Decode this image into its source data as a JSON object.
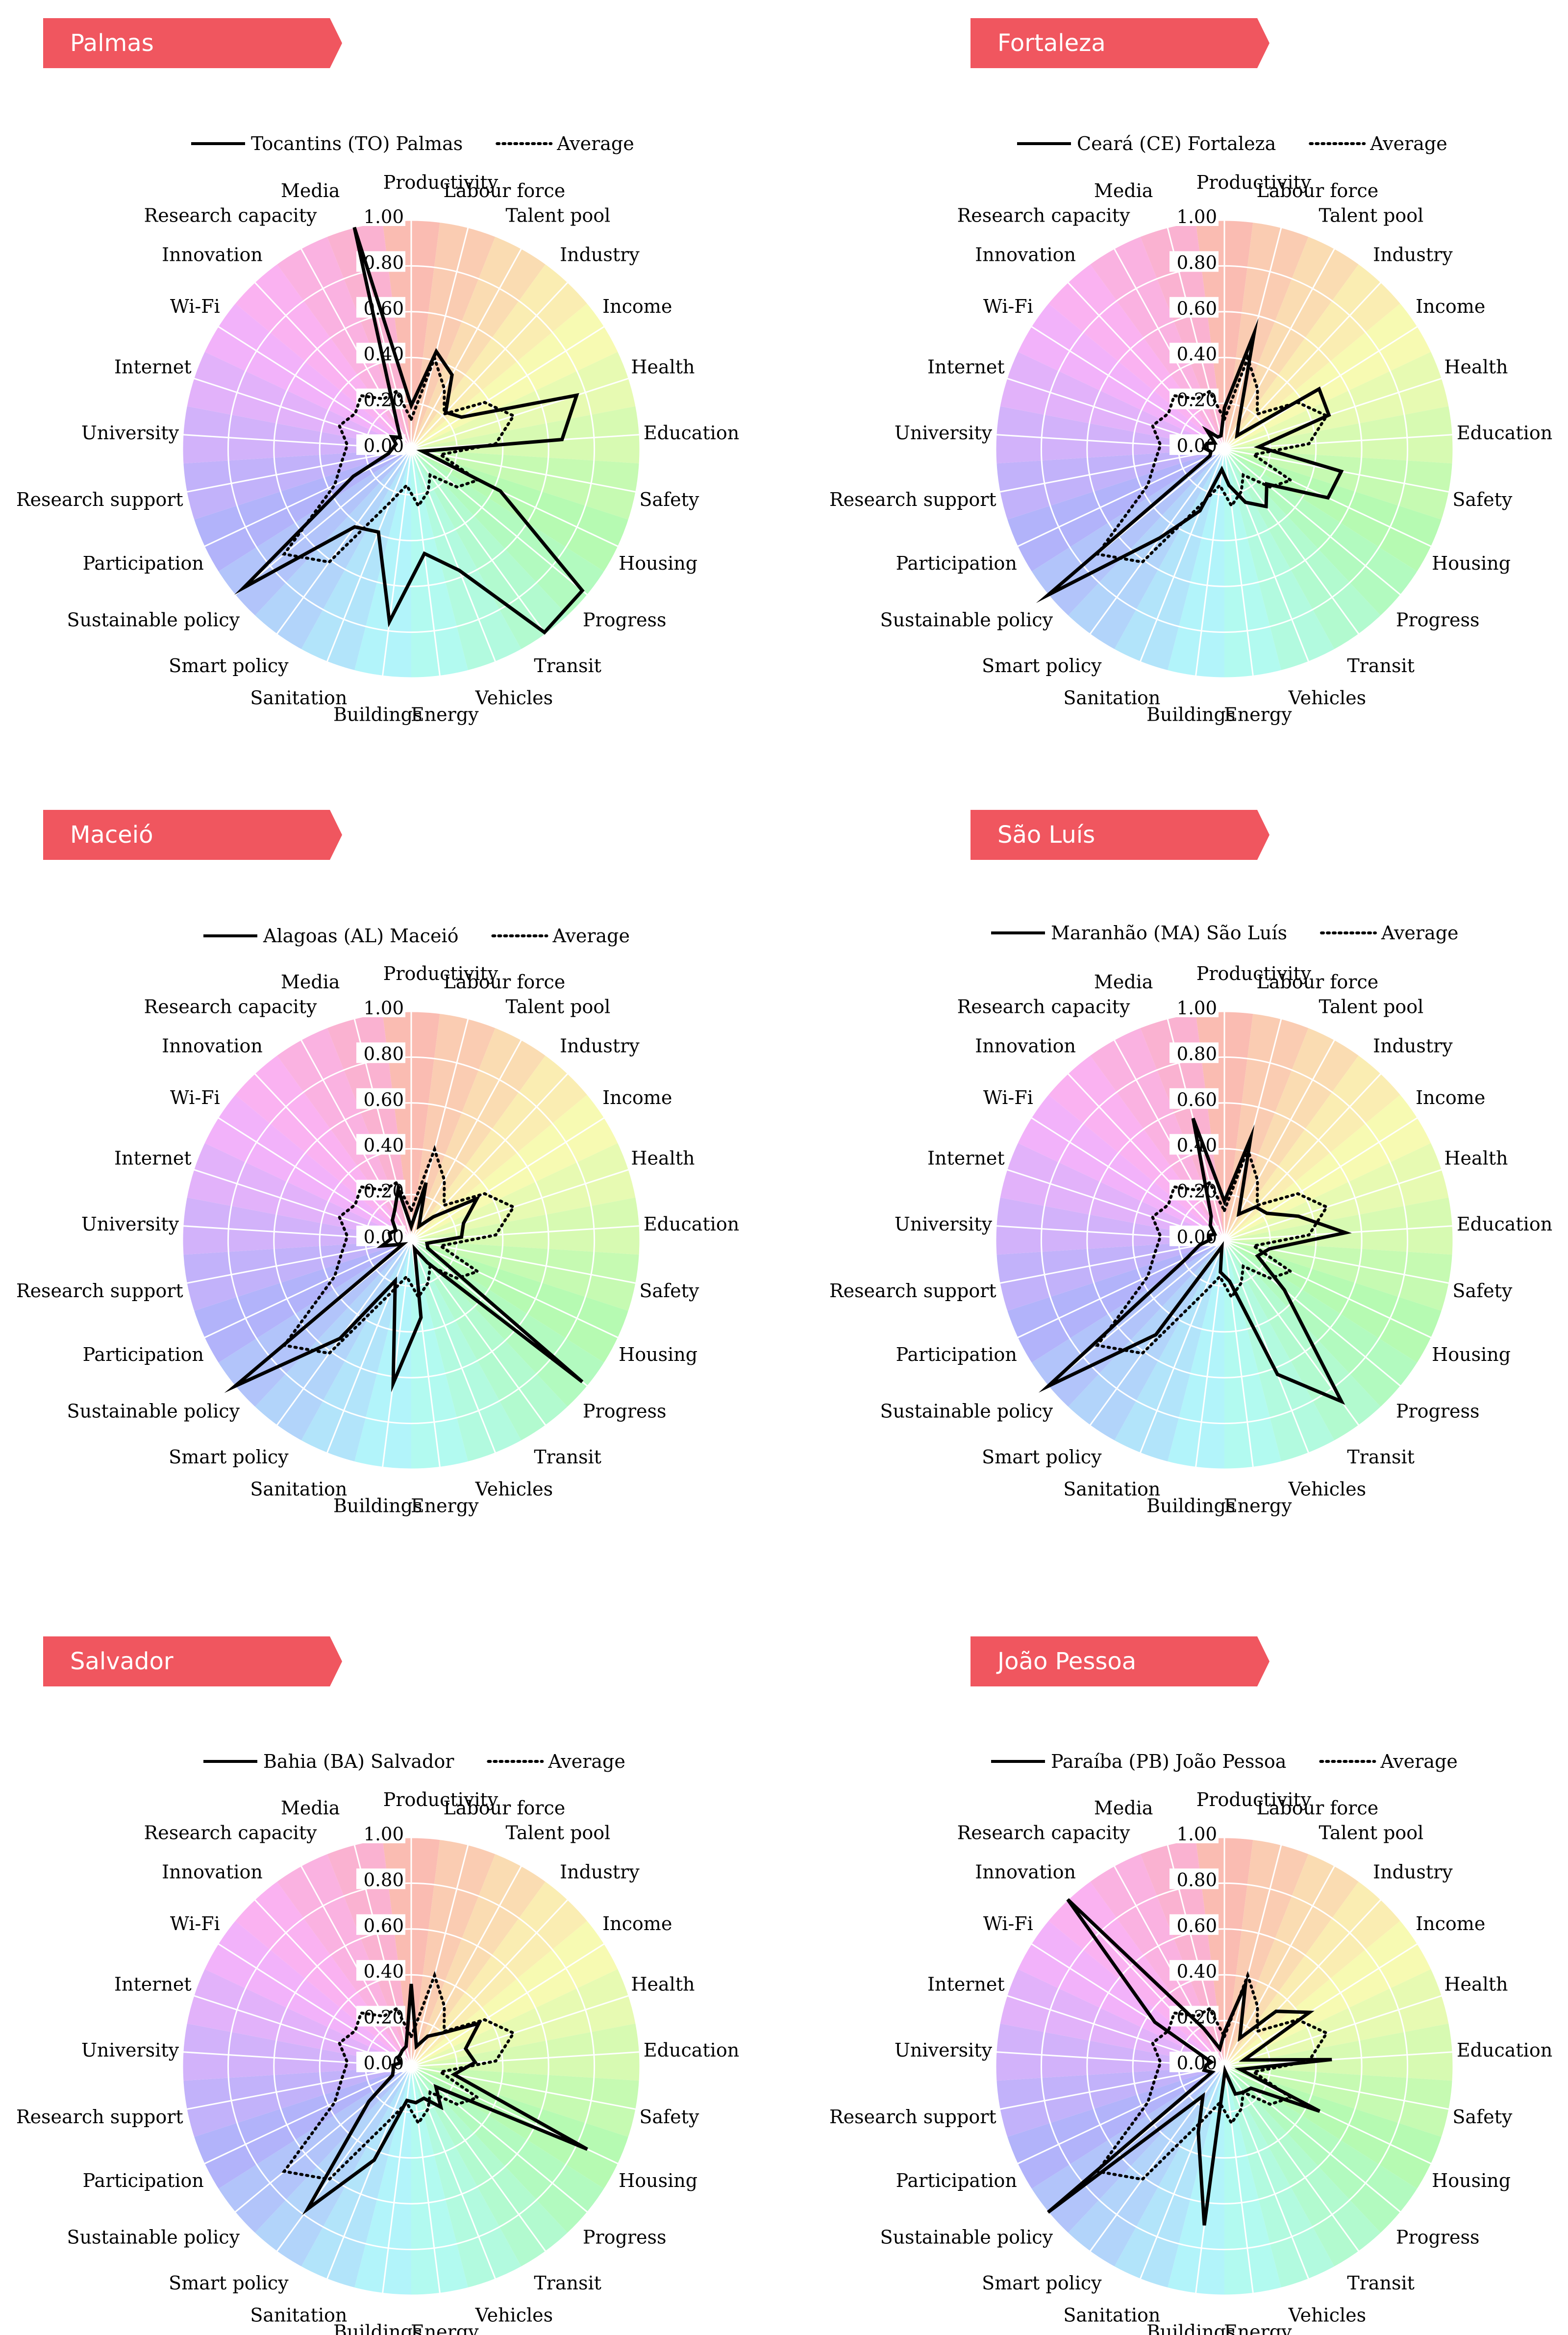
{
  "figure": {
    "axes": [
      "Productivity",
      "Labour force",
      "Talent pool",
      "Industry",
      "Income",
      "Health",
      "Education",
      "Safety",
      "Housing",
      "Progress",
      "Transit",
      "Vehicles",
      "Energy",
      "Buildings",
      "Sanitation",
      "Smart policy",
      "Sustainable policy",
      "Participation",
      "Research support",
      "University",
      "Internet",
      "Wi-Fi",
      "Innovation",
      "Research capacity",
      "Media"
    ],
    "ticks": [
      "0.00",
      "0.20",
      "0.40",
      "0.60",
      "0.80",
      "1.00"
    ],
    "average_label": "Average",
    "colors": {
      "banner": "#f0565f",
      "banner_text": "#ffffff",
      "line": "#000000"
    }
  },
  "chart_data": [
    {
      "type": "radar",
      "title": "Palmas",
      "legend": [
        "Tocantins (TO) Palmas",
        "Average"
      ],
      "rlim": [
        0,
        1
      ],
      "series": [
        {
          "name": "Tocantins (TO) Palmas",
          "style": "solid",
          "values": [
            0.19,
            0.44,
            0.37,
            0.22,
            0.26,
            0.76,
            0.66,
            0.05,
            0.43,
            0.97,
            0.99,
            0.57,
            0.46,
            0.76,
            0.39,
            0.42,
            0.95,
            0.28,
            0.1,
            0.08,
            0.07,
            0.1,
            0.07,
            0.13,
            1.0
          ]
        },
        {
          "name": "Average",
          "style": "dotted",
          "values": [
            0.13,
            0.41,
            0.3,
            0.21,
            0.38,
            0.47,
            0.37,
            0.13,
            0.32,
            0.26,
            0.14,
            0.2,
            0.25,
            0.16,
            0.25,
            0.61,
            0.72,
            0.37,
            0.31,
            0.28,
            0.33,
            0.29,
            0.32,
            0.25,
            0.26
          ]
        }
      ]
    },
    {
      "type": "radar",
      "title": "Fortaleza",
      "legend": [
        "Ceará (CE) Fortaleza",
        "Average"
      ],
      "rlim": [
        0,
        1
      ],
      "series": [
        {
          "name": "Ceará (CE) Fortaleza",
          "style": "solid",
          "values": [
            0.18,
            0.52,
            0.13,
            0.08,
            0.49,
            0.48,
            0.15,
            0.52,
            0.5,
            0.24,
            0.31,
            0.25,
            0.16,
            0.09,
            0.29,
            0.48,
            1.0,
            0.07,
            0.06,
            0.09,
            0.08,
            0.05,
            0.11,
            0.06,
            0.06
          ]
        },
        {
          "name": "Average",
          "style": "dotted",
          "values": [
            0.13,
            0.41,
            0.3,
            0.21,
            0.38,
            0.47,
            0.37,
            0.13,
            0.32,
            0.26,
            0.14,
            0.2,
            0.25,
            0.16,
            0.25,
            0.61,
            0.72,
            0.37,
            0.31,
            0.28,
            0.33,
            0.29,
            0.32,
            0.25,
            0.26
          ]
        }
      ]
    },
    {
      "type": "radar",
      "title": "Maceió",
      "legend": [
        "Alagoas (AL) Maceió",
        "Average"
      ],
      "rlim": [
        0,
        1
      ],
      "series": [
        {
          "name": "Alagoas (AL) Maceió",
          "style": "solid",
          "values": [
            0.06,
            0.26,
            0.07,
            0.14,
            0.34,
            0.24,
            0.22,
            0.07,
            0.08,
            0.97,
            0.12,
            0.04,
            0.34,
            0.63,
            0.19,
            0.53,
            1.0,
            0.04,
            0.13,
            0.09,
            0.1,
            0.08,
            0.12,
            0.15,
            0.23
          ]
        },
        {
          "name": "Average",
          "style": "dotted",
          "values": [
            0.13,
            0.41,
            0.3,
            0.21,
            0.38,
            0.47,
            0.37,
            0.13,
            0.32,
            0.26,
            0.14,
            0.2,
            0.25,
            0.16,
            0.25,
            0.61,
            0.72,
            0.37,
            0.31,
            0.28,
            0.33,
            0.29,
            0.32,
            0.25,
            0.26
          ]
        }
      ]
    },
    {
      "type": "radar",
      "title": "São Luís",
      "legend": [
        "Maranhão (MA) São Luís",
        "Average"
      ],
      "rlim": [
        0,
        1
      ],
      "series": [
        {
          "name": "Maranhão (MA) São Luís",
          "style": "solid",
          "values": [
            0.17,
            0.46,
            0.13,
            0.2,
            0.22,
            0.34,
            0.53,
            0.2,
            0.16,
            0.34,
            0.87,
            0.63,
            0.18,
            0.14,
            0.03,
            0.51,
            1.0,
            0.18,
            0.11,
            0.06,
            0.07,
            0.05,
            0.09,
            0.12,
            0.55
          ]
        },
        {
          "name": "Average",
          "style": "dotted",
          "values": [
            0.13,
            0.41,
            0.3,
            0.21,
            0.38,
            0.47,
            0.37,
            0.13,
            0.32,
            0.26,
            0.14,
            0.2,
            0.25,
            0.16,
            0.25,
            0.61,
            0.72,
            0.37,
            0.31,
            0.28,
            0.33,
            0.29,
            0.32,
            0.25,
            0.26
          ]
        }
      ]
    },
    {
      "type": "radar",
      "title": "Salvador",
      "legend": [
        "Bahia (BA) Salvador",
        "Average"
      ],
      "rlim": [
        0,
        1
      ],
      "series": [
        {
          "name": "Bahia (BA) Salvador",
          "style": "solid",
          "values": [
            0.36,
            0.09,
            0.15,
            0.2,
            0.35,
            0.25,
            0.28,
            0.19,
            0.85,
            0.14,
            0.22,
            0.15,
            0.16,
            0.15,
            0.44,
            0.77,
            0.24,
            0.09,
            0.08,
            0.08,
            0.05,
            0.07,
            0.07,
            0.08,
            0.09
          ]
        },
        {
          "name": "Average",
          "style": "dotted",
          "values": [
            0.13,
            0.41,
            0.3,
            0.21,
            0.38,
            0.47,
            0.37,
            0.13,
            0.32,
            0.26,
            0.14,
            0.2,
            0.25,
            0.16,
            0.25,
            0.61,
            0.72,
            0.37,
            0.31,
            0.28,
            0.33,
            0.29,
            0.32,
            0.25,
            0.26
          ]
        }
      ]
    },
    {
      "type": "radar",
      "title": "João Pessoa",
      "legend": [
        "Paraíba (PB) João Pessoa",
        "Average"
      ],
      "rlim": [
        0,
        1
      ],
      "series": [
        {
          "name": "Paraíba (PB) João Pessoa",
          "style": "solid",
          "values": [
            0.15,
            0.37,
            0.14,
            0.33,
            0.44,
            0.09,
            0.47,
            0.07,
            0.46,
            0.15,
            0.14,
            0.13,
            0.02,
            0.7,
            0.31,
            0.16,
            1.0,
            0.06,
            0.09,
            0.08,
            0.06,
            0.36,
            1.0,
            0.19,
            0.08
          ]
        },
        {
          "name": "Average",
          "style": "dotted",
          "values": [
            0.13,
            0.41,
            0.3,
            0.21,
            0.38,
            0.47,
            0.37,
            0.13,
            0.32,
            0.26,
            0.14,
            0.2,
            0.25,
            0.16,
            0.25,
            0.61,
            0.72,
            0.37,
            0.31,
            0.28,
            0.33,
            0.29,
            0.32,
            0.25,
            0.26
          ]
        }
      ]
    }
  ]
}
